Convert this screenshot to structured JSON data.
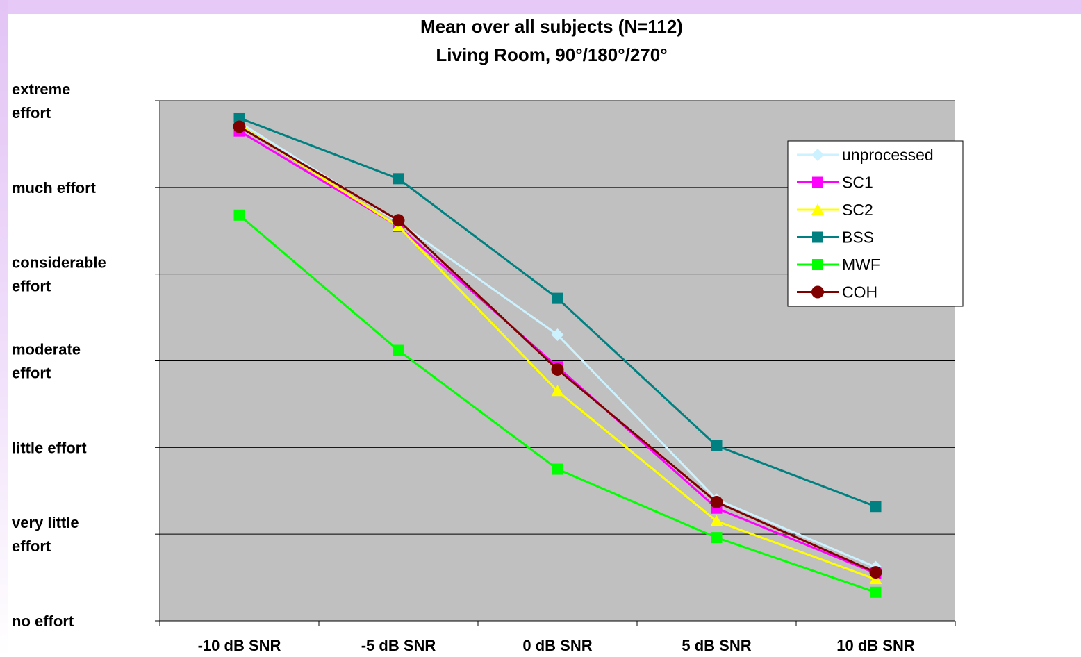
{
  "chart_data": {
    "type": "line",
    "title_line1": "Mean over all subjects (N=112)",
    "title_line2": "Living Room, 90°/180°/270°",
    "categories": [
      "-10 dB SNR",
      "-5 dB SNR",
      "0 dB SNR",
      "5 dB SNR",
      "10 dB SNR"
    ],
    "y_levels": [
      [
        "no effort"
      ],
      [
        "very little",
        "effort"
      ],
      [
        "little effort"
      ],
      [
        "moderate",
        "effort"
      ],
      [
        "considerable",
        "effort"
      ],
      [
        "much effort"
      ],
      [
        "extreme",
        "effort"
      ]
    ],
    "ylim": [
      0,
      6
    ],
    "grid": true,
    "legend_position": "top-right",
    "series": [
      {
        "name": "unprocessed",
        "color": "#ccf2ff",
        "marker": "diamond",
        "values": [
          5.75,
          4.6,
          3.3,
          1.4,
          0.62
        ]
      },
      {
        "name": "SC1",
        "color": "#ff00ff",
        "marker": "square",
        "values": [
          5.65,
          4.55,
          2.93,
          1.3,
          0.55
        ]
      },
      {
        "name": "SC2",
        "color": "#ffff00",
        "marker": "triangle",
        "values": [
          5.72,
          4.55,
          2.65,
          1.15,
          0.48
        ]
      },
      {
        "name": "BSS",
        "color": "#008080",
        "marker": "square",
        "values": [
          5.8,
          5.1,
          3.72,
          2.02,
          1.32
        ]
      },
      {
        "name": "MWF",
        "color": "#00ff00",
        "marker": "square",
        "values": [
          4.68,
          3.12,
          1.75,
          0.96,
          0.33
        ]
      },
      {
        "name": "COH",
        "color": "#800000",
        "marker": "circle",
        "values": [
          5.7,
          4.62,
          2.9,
          1.37,
          0.56
        ]
      }
    ]
  }
}
